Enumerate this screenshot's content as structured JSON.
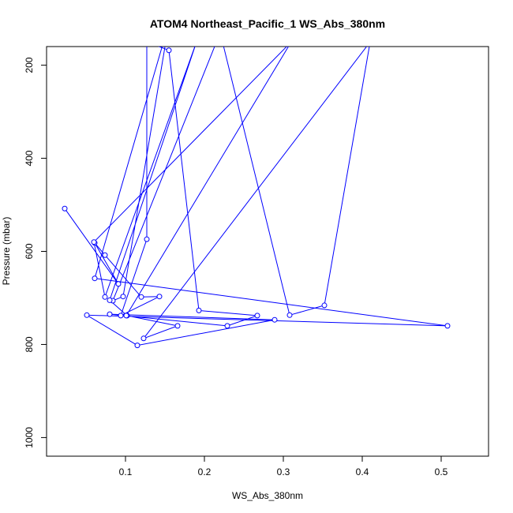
{
  "chart_data": {
    "type": "line",
    "title": "ATOM4 Northeast_Pacific_1 WS_Abs_380nm",
    "xlabel": "WS_Abs_380nm",
    "ylabel": "Pressure (mbar)",
    "xlim": [
      0.0,
      0.56
    ],
    "ylim": [
      1040,
      160
    ],
    "y_reversed": true,
    "grid": false,
    "x_ticks": [
      {
        "value": 0.1,
        "label": "0.1"
      },
      {
        "value": 0.2,
        "label": "0.2"
      },
      {
        "value": 0.3,
        "label": "0.3"
      },
      {
        "value": 0.4,
        "label": "0.4"
      },
      {
        "value": 0.5,
        "label": "0.5"
      }
    ],
    "y_ticks": [
      {
        "value": 200,
        "label": "200"
      },
      {
        "value": 400,
        "label": "400"
      },
      {
        "value": 600,
        "label": "600"
      },
      {
        "value": 800,
        "label": "800"
      },
      {
        "value": 1000,
        "label": "1000"
      }
    ],
    "colors": {
      "series": "#0000ff",
      "axis": "#000000"
    },
    "series": [
      {
        "x": [
          0.023,
          0.091,
          0.061,
          0.074,
          0.12,
          0.143,
          0.094,
          0.127,
          0.127,
          0.155,
          0.193,
          0.267,
          0.229,
          0.08,
          0.289,
          0.115,
          0.051,
          0.508,
          0.061,
          0.155,
          0.097,
          0.084,
          0.22,
          0.308,
          0.352,
          0.41,
          0.123,
          0.166,
          0.102,
          0.08,
          0.19,
          0.074,
          0.06,
          0.31,
          0.101
        ],
        "y": [
          508,
          670,
          582,
          608,
          698,
          697,
          738,
          574,
          150,
          168,
          727,
          738,
          760,
          735,
          747,
          802,
          737,
          760,
          658,
          110,
          697,
          706,
          130,
          737,
          716,
          150,
          787,
          760,
          738,
          705,
          150,
          698,
          580,
          150,
          738
        ]
      }
    ]
  }
}
